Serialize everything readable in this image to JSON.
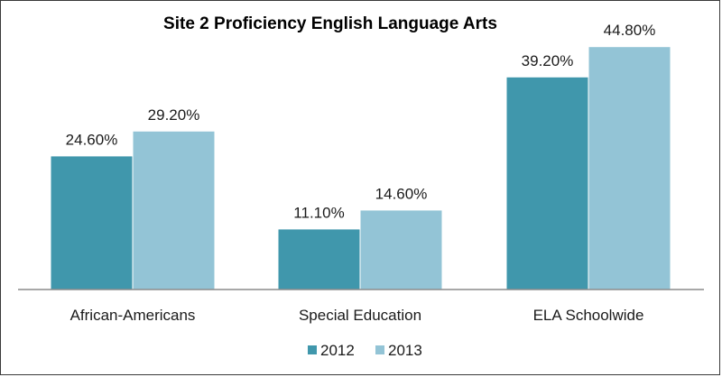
{
  "chart_data": {
    "type": "bar",
    "title": "Site 2 Proficiency English Language Arts",
    "xlabel": "",
    "ylabel": "",
    "categories": [
      "African-Americans",
      "Special Education",
      "ELA Schoolwide"
    ],
    "series": [
      {
        "name": "2012",
        "values": [
          24.6,
          11.1,
          39.2
        ],
        "labels": [
          "24.60%",
          "11.10%",
          "39.20%"
        ],
        "color": "#4097AC"
      },
      {
        "name": "2013",
        "values": [
          29.2,
          14.6,
          44.8
        ],
        "labels": [
          "29.20%",
          "14.60%",
          "44.80%"
        ],
        "color": "#93C4D6"
      }
    ],
    "ylim": [
      0,
      50
    ],
    "grid": false,
    "legend_position": "bottom"
  }
}
